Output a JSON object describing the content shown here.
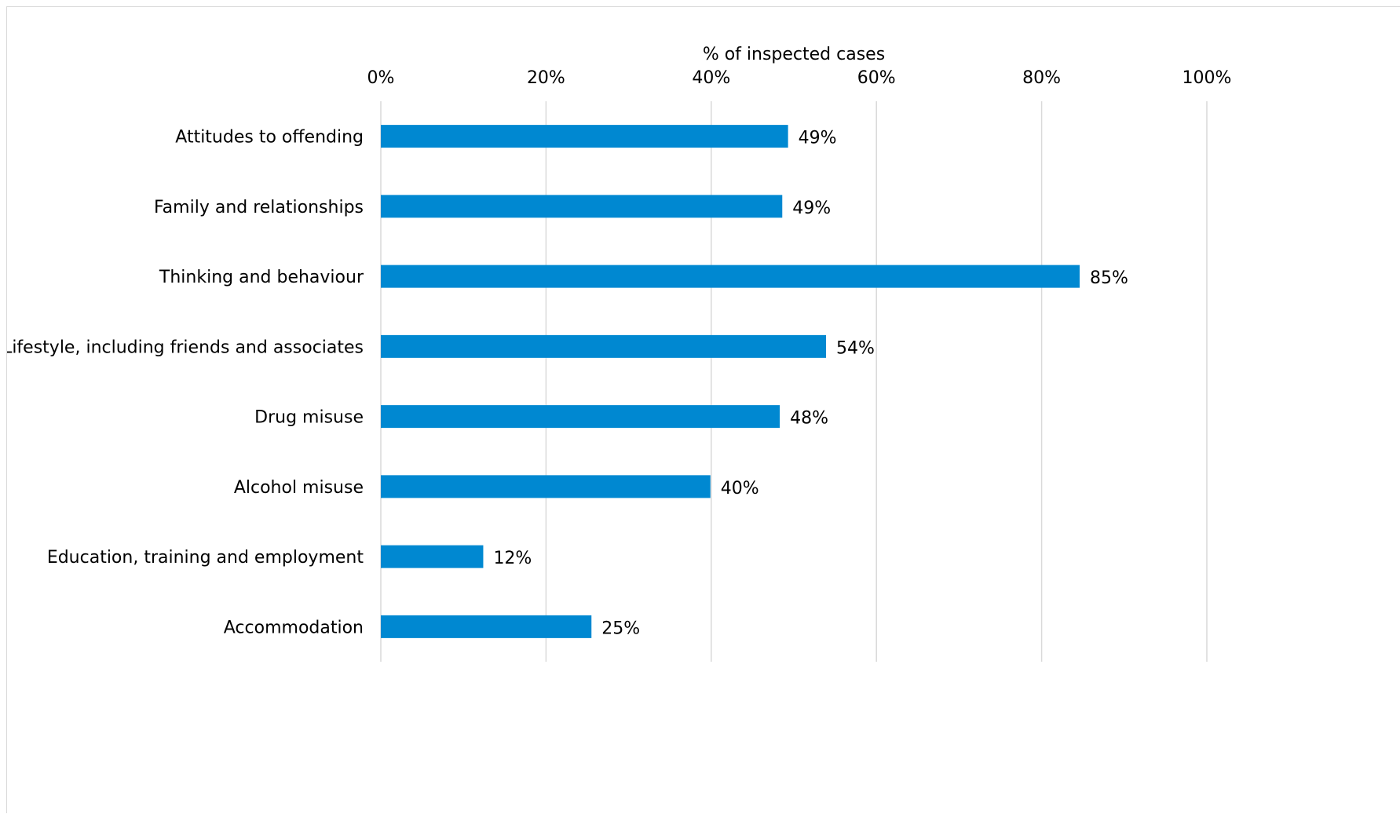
{
  "chart_data": {
    "type": "bar",
    "orientation": "horizontal",
    "title": "",
    "xlabel": "% of inspected cases",
    "ylabel": "",
    "xlim": [
      0,
      100
    ],
    "x_ticks": [
      0,
      20,
      40,
      60,
      80,
      100
    ],
    "x_tick_labels": [
      "0%",
      "20%",
      "40%",
      "60%",
      "80%",
      "100%"
    ],
    "x_axis_position": "top",
    "grid": true,
    "legend": "none",
    "categories": [
      "Attitudes to offending",
      "Family and relationships",
      "Thinking and behaviour",
      "Lifestyle, including friends and associates",
      "Drug misuse",
      "Alcohol misuse",
      "Education, training and employment",
      "Accommodation"
    ],
    "values": [
      49.3,
      48.6,
      84.6,
      53.9,
      48.3,
      39.9,
      12.4,
      25.5
    ],
    "data_labels": [
      "49%",
      "49%",
      "85%",
      "54%",
      "48%",
      "40%",
      "12%",
      "25%"
    ],
    "colors": {
      "bar": "#0088d1",
      "grid": "#d9d9d9",
      "border": "#d9d9d9",
      "text": "#000000"
    }
  }
}
